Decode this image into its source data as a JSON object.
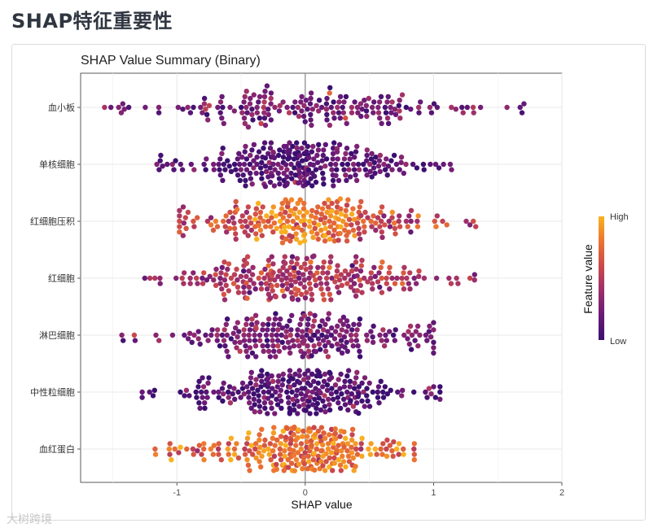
{
  "page": {
    "title": "SHAP特征重要性",
    "watermark": "大树跨境"
  },
  "chart_data": {
    "type": "scatter",
    "subtype": "beeswarm",
    "title": "SHAP Value Summary (Binary)",
    "xlabel": "SHAP value",
    "ylabel": "",
    "xlim": [
      -1.75,
      2.0
    ],
    "xticks": [
      -1,
      0,
      1,
      2
    ],
    "xtick_labels": [
      "-1",
      "0",
      "1",
      "2"
    ],
    "zero_line": true,
    "grid": true,
    "legend": {
      "title": "Feature value",
      "high_label": "High",
      "low_label": "Low",
      "placement": "right",
      "colormap": [
        "#3b0f70",
        "#6a1a78",
        "#9c2e6b",
        "#cc4a4a",
        "#ec7430",
        "#f9b21f"
      ]
    },
    "features": [
      {
        "name": "血小板",
        "xrange": [
          -1.6,
          1.82
        ],
        "bias": "low",
        "count": 180
      },
      {
        "name": "单核细胞",
        "xrange": [
          -1.18,
          1.14
        ],
        "bias": "verylow",
        "count": 270
      },
      {
        "name": "红细胞压积",
        "xrange": [
          -0.98,
          1.47
        ],
        "bias": "mid",
        "count": 250
      },
      {
        "name": "红细胞",
        "xrange": [
          -1.25,
          1.32
        ],
        "bias": "midlow",
        "count": 250
      },
      {
        "name": "淋巴细胞",
        "xrange": [
          -1.47,
          1.0
        ],
        "bias": "low",
        "count": 240
      },
      {
        "name": "中性粒细胞",
        "xrange": [
          -1.27,
          1.05
        ],
        "bias": "verylow",
        "count": 260
      },
      {
        "name": "血红蛋白",
        "xrange": [
          -1.17,
          0.85
        ],
        "bias": "high",
        "count": 260
      }
    ]
  }
}
